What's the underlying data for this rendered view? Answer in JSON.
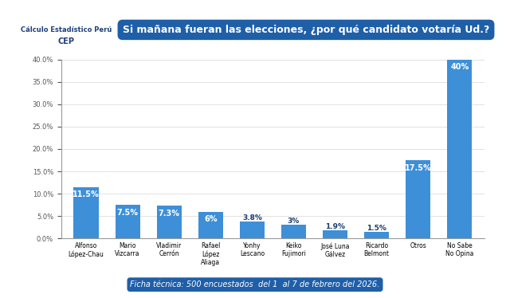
{
  "chart_data": {
    "type": "bar",
    "title": "Si mañana fueran las elecciones, ¿por qué candidato votaría Ud.?",
    "logo_text": [
      "Cálculo Estadístico Perú",
      "CEP"
    ],
    "footnote": "Ficha técnica: 500 encuestados  del 1  al 7 de febrero del 2026.",
    "categories": [
      "Alfonso\nLópez-Chau",
      "Mario\nVizcarra",
      "Vladimir\nCerrón",
      "Rafael\nLópez\nAliaga",
      "Yonhy\nLescano",
      "Keiko\nFujimori",
      "José Luna\nGálvez",
      "Ricardo\nBelmont",
      "Otros",
      "No Sabe\nNo Opina"
    ],
    "values": [
      11.5,
      7.5,
      7.3,
      6,
      3.8,
      3,
      1.9,
      1.5,
      17.5,
      40
    ],
    "value_labels": [
      "11.5%",
      "7.5%",
      "7.3%",
      "6%",
      "3.8%",
      "3%",
      "1.9%",
      "1.5%",
      "17.5%",
      "40%"
    ],
    "color": "#3d8fd8",
    "ylim": [
      0,
      40
    ],
    "yticks": [
      {
        "value": 0,
        "label": "0.0%"
      },
      {
        "value": 5,
        "label": "5.0%"
      },
      {
        "value": 10,
        "label": "10.0%"
      },
      {
        "value": 15,
        "label": "15.0%"
      },
      {
        "value": 20,
        "label": "20.0%"
      },
      {
        "value": 25,
        "label": "25.0%"
      },
      {
        "value": 30,
        "label": "30.0%"
      },
      {
        "value": 35,
        "label": "35.0%"
      },
      {
        "value": 40,
        "label": "40.0%"
      }
    ],
    "grid": true,
    "data_labels": true
  }
}
